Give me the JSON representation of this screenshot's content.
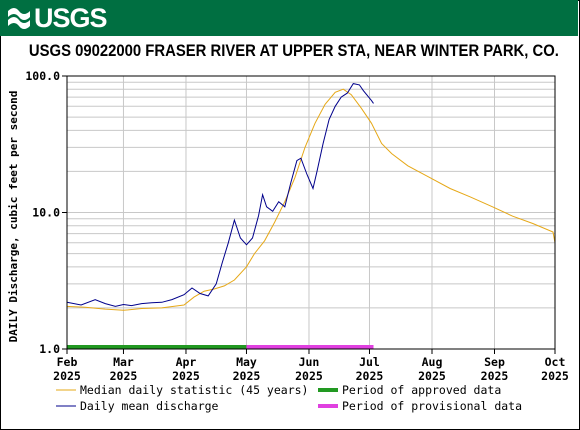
{
  "header": {
    "agency": "USGS",
    "title": "USGS 09022000 FRASER RIVER AT UPPER STA, NEAR WINTER PARK, CO."
  },
  "colors": {
    "banner": "#006F41",
    "median": "#E6A817",
    "mean": "#00008B",
    "approved": "#229922",
    "provisional": "#E040E0"
  },
  "chart_data": {
    "type": "line",
    "ylabel": "DAILY Discharge, cubic feet per second",
    "yscale": "log",
    "ylim": [
      1.0,
      100.0
    ],
    "yticks": [
      {
        "value": 1.0,
        "label": "1.0"
      },
      {
        "value": 10.0,
        "label": "10.0"
      },
      {
        "value": 100.0,
        "label": "100.0"
      }
    ],
    "xlim": [
      "2025-02-01",
      "2025-10-01"
    ],
    "xticks": [
      {
        "date": "2025-02-01",
        "month": "Feb",
        "year": "2025"
      },
      {
        "date": "2025-03-01",
        "month": "Mar",
        "year": "2025"
      },
      {
        "date": "2025-04-01",
        "month": "Apr",
        "year": "2025"
      },
      {
        "date": "2025-05-01",
        "month": "May",
        "year": "2025"
      },
      {
        "date": "2025-06-01",
        "month": "Jun",
        "year": "2025"
      },
      {
        "date": "2025-07-01",
        "month": "Jul",
        "year": "2025"
      },
      {
        "date": "2025-08-01",
        "month": "Aug",
        "year": "2025"
      },
      {
        "date": "2025-09-01",
        "month": "Sep",
        "year": "2025"
      },
      {
        "date": "2025-10-01",
        "month": "Oct",
        "year": "2025"
      }
    ],
    "grid": true,
    "series": [
      {
        "name": "Median daily statistic (45 years)",
        "points": [
          [
            "2025-02-01",
            2.05
          ],
          [
            "2025-02-10",
            2.02
          ],
          [
            "2025-02-20",
            1.96
          ],
          [
            "2025-03-01",
            1.92
          ],
          [
            "2025-03-10",
            1.98
          ],
          [
            "2025-03-20",
            2.0
          ],
          [
            "2025-03-31",
            2.1
          ],
          [
            "2025-04-05",
            2.4
          ],
          [
            "2025-04-10",
            2.65
          ],
          [
            "2025-04-15",
            2.75
          ],
          [
            "2025-04-20",
            2.9
          ],
          [
            "2025-04-25",
            3.2
          ],
          [
            "2025-05-01",
            4.0
          ],
          [
            "2025-05-05",
            5.0
          ],
          [
            "2025-05-10",
            6.2
          ],
          [
            "2025-05-15",
            8.5
          ],
          [
            "2025-05-20",
            12.0
          ],
          [
            "2025-05-25",
            18.0
          ],
          [
            "2025-05-30",
            30.0
          ],
          [
            "2025-06-04",
            45.0
          ],
          [
            "2025-06-09",
            62.0
          ],
          [
            "2025-06-14",
            76.0
          ],
          [
            "2025-06-18",
            80.0
          ],
          [
            "2025-06-22",
            73.0
          ],
          [
            "2025-06-27",
            58.0
          ],
          [
            "2025-07-02",
            45.0
          ],
          [
            "2025-07-07",
            32.0
          ],
          [
            "2025-07-12",
            27.0
          ],
          [
            "2025-07-20",
            22.0
          ],
          [
            "2025-07-31",
            18.0
          ],
          [
            "2025-08-10",
            15.0
          ],
          [
            "2025-08-20",
            13.0
          ],
          [
            "2025-08-31",
            11.0
          ],
          [
            "2025-09-10",
            9.4
          ],
          [
            "2025-09-20",
            8.3
          ],
          [
            "2025-09-30",
            7.2
          ],
          [
            "2025-10-01",
            6.0
          ]
        ]
      },
      {
        "name": "Daily mean discharge",
        "points": [
          [
            "2025-02-01",
            2.2
          ],
          [
            "2025-02-08",
            2.1
          ],
          [
            "2025-02-15",
            2.3
          ],
          [
            "2025-02-20",
            2.15
          ],
          [
            "2025-02-25",
            2.05
          ],
          [
            "2025-03-01",
            2.12
          ],
          [
            "2025-03-05",
            2.08
          ],
          [
            "2025-03-10",
            2.15
          ],
          [
            "2025-03-15",
            2.18
          ],
          [
            "2025-03-20",
            2.2
          ],
          [
            "2025-03-25",
            2.3
          ],
          [
            "2025-03-31",
            2.5
          ],
          [
            "2025-04-04",
            2.8
          ],
          [
            "2025-04-08",
            2.55
          ],
          [
            "2025-04-12",
            2.45
          ],
          [
            "2025-04-16",
            3.0
          ],
          [
            "2025-04-19",
            4.3
          ],
          [
            "2025-04-22",
            6.0
          ],
          [
            "2025-04-25",
            8.8
          ],
          [
            "2025-04-28",
            6.5
          ],
          [
            "2025-05-01",
            5.8
          ],
          [
            "2025-05-04",
            6.5
          ],
          [
            "2025-05-07",
            9.5
          ],
          [
            "2025-05-09",
            13.5
          ],
          [
            "2025-05-11",
            11.0
          ],
          [
            "2025-05-14",
            10.2
          ],
          [
            "2025-05-17",
            12.0
          ],
          [
            "2025-05-20",
            11.0
          ],
          [
            "2025-05-23",
            16.5
          ],
          [
            "2025-05-26",
            24.0
          ],
          [
            "2025-05-28",
            25.0
          ],
          [
            "2025-05-31",
            19.0
          ],
          [
            "2025-06-03",
            15.0
          ],
          [
            "2025-06-05",
            20.0
          ],
          [
            "2025-06-08",
            32.0
          ],
          [
            "2025-06-11",
            48.0
          ],
          [
            "2025-06-14",
            60.0
          ],
          [
            "2025-06-17",
            70.0
          ],
          [
            "2025-06-20",
            75.0
          ],
          [
            "2025-06-23",
            88.0
          ],
          [
            "2025-06-26",
            86.0
          ],
          [
            "2025-06-28",
            78.0
          ],
          [
            "2025-07-02",
            66.0
          ],
          [
            "2025-07-03",
            63.0
          ]
        ]
      }
    ],
    "periods": [
      {
        "name": "Period of approved data",
        "start": "2025-02-01",
        "end": "2025-05-01"
      },
      {
        "name": "Period of provisional data",
        "start": "2025-05-01",
        "end": "2025-07-03"
      }
    ]
  }
}
